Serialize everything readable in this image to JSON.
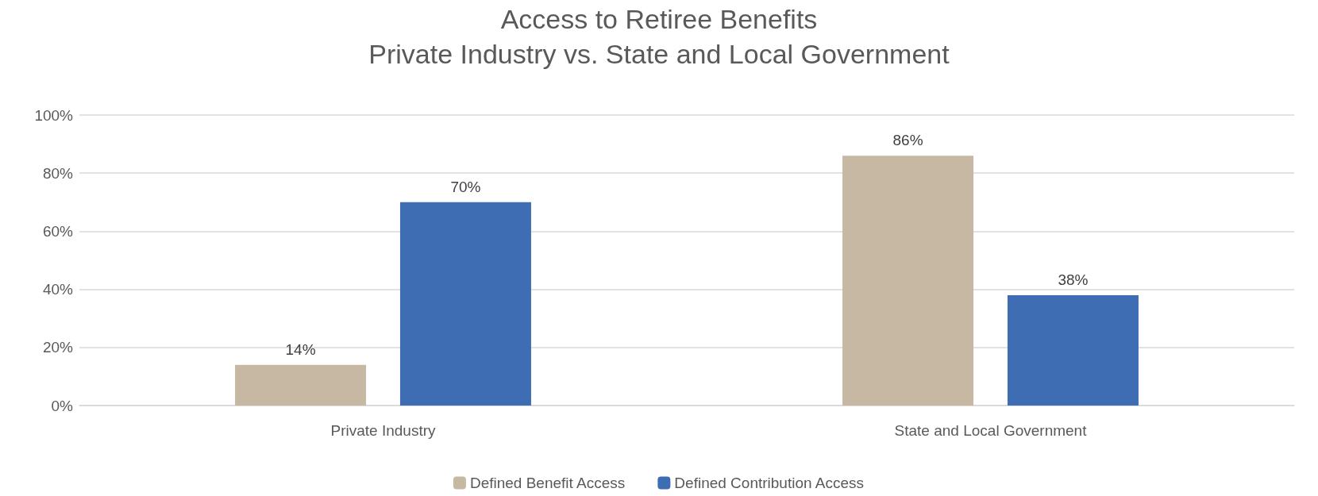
{
  "chart_data": {
    "type": "bar",
    "title": "Access to Retiree Benefits",
    "subtitle": "Private Industry vs. State and Local Government",
    "categories": [
      "Private Industry",
      "State and Local Government"
    ],
    "series": [
      {
        "name": "Defined Benefit Access",
        "color": "#c6b8a3",
        "values": [
          14,
          86
        ],
        "value_labels": [
          "14%",
          "86%"
        ]
      },
      {
        "name": "Defined Contribution Access",
        "color": "#3e6db4",
        "values": [
          70,
          38
        ],
        "value_labels": [
          "70%",
          "38%"
        ]
      }
    ],
    "ylim": [
      0,
      100
    ],
    "yticks": [
      {
        "value": 0,
        "label": "0%"
      },
      {
        "value": 20,
        "label": "20%"
      },
      {
        "value": 40,
        "label": "40%"
      },
      {
        "value": 60,
        "label": "60%"
      },
      {
        "value": 80,
        "label": "80%"
      },
      {
        "value": 100,
        "label": "100%"
      }
    ],
    "grid": "y",
    "legend": "bottom"
  }
}
